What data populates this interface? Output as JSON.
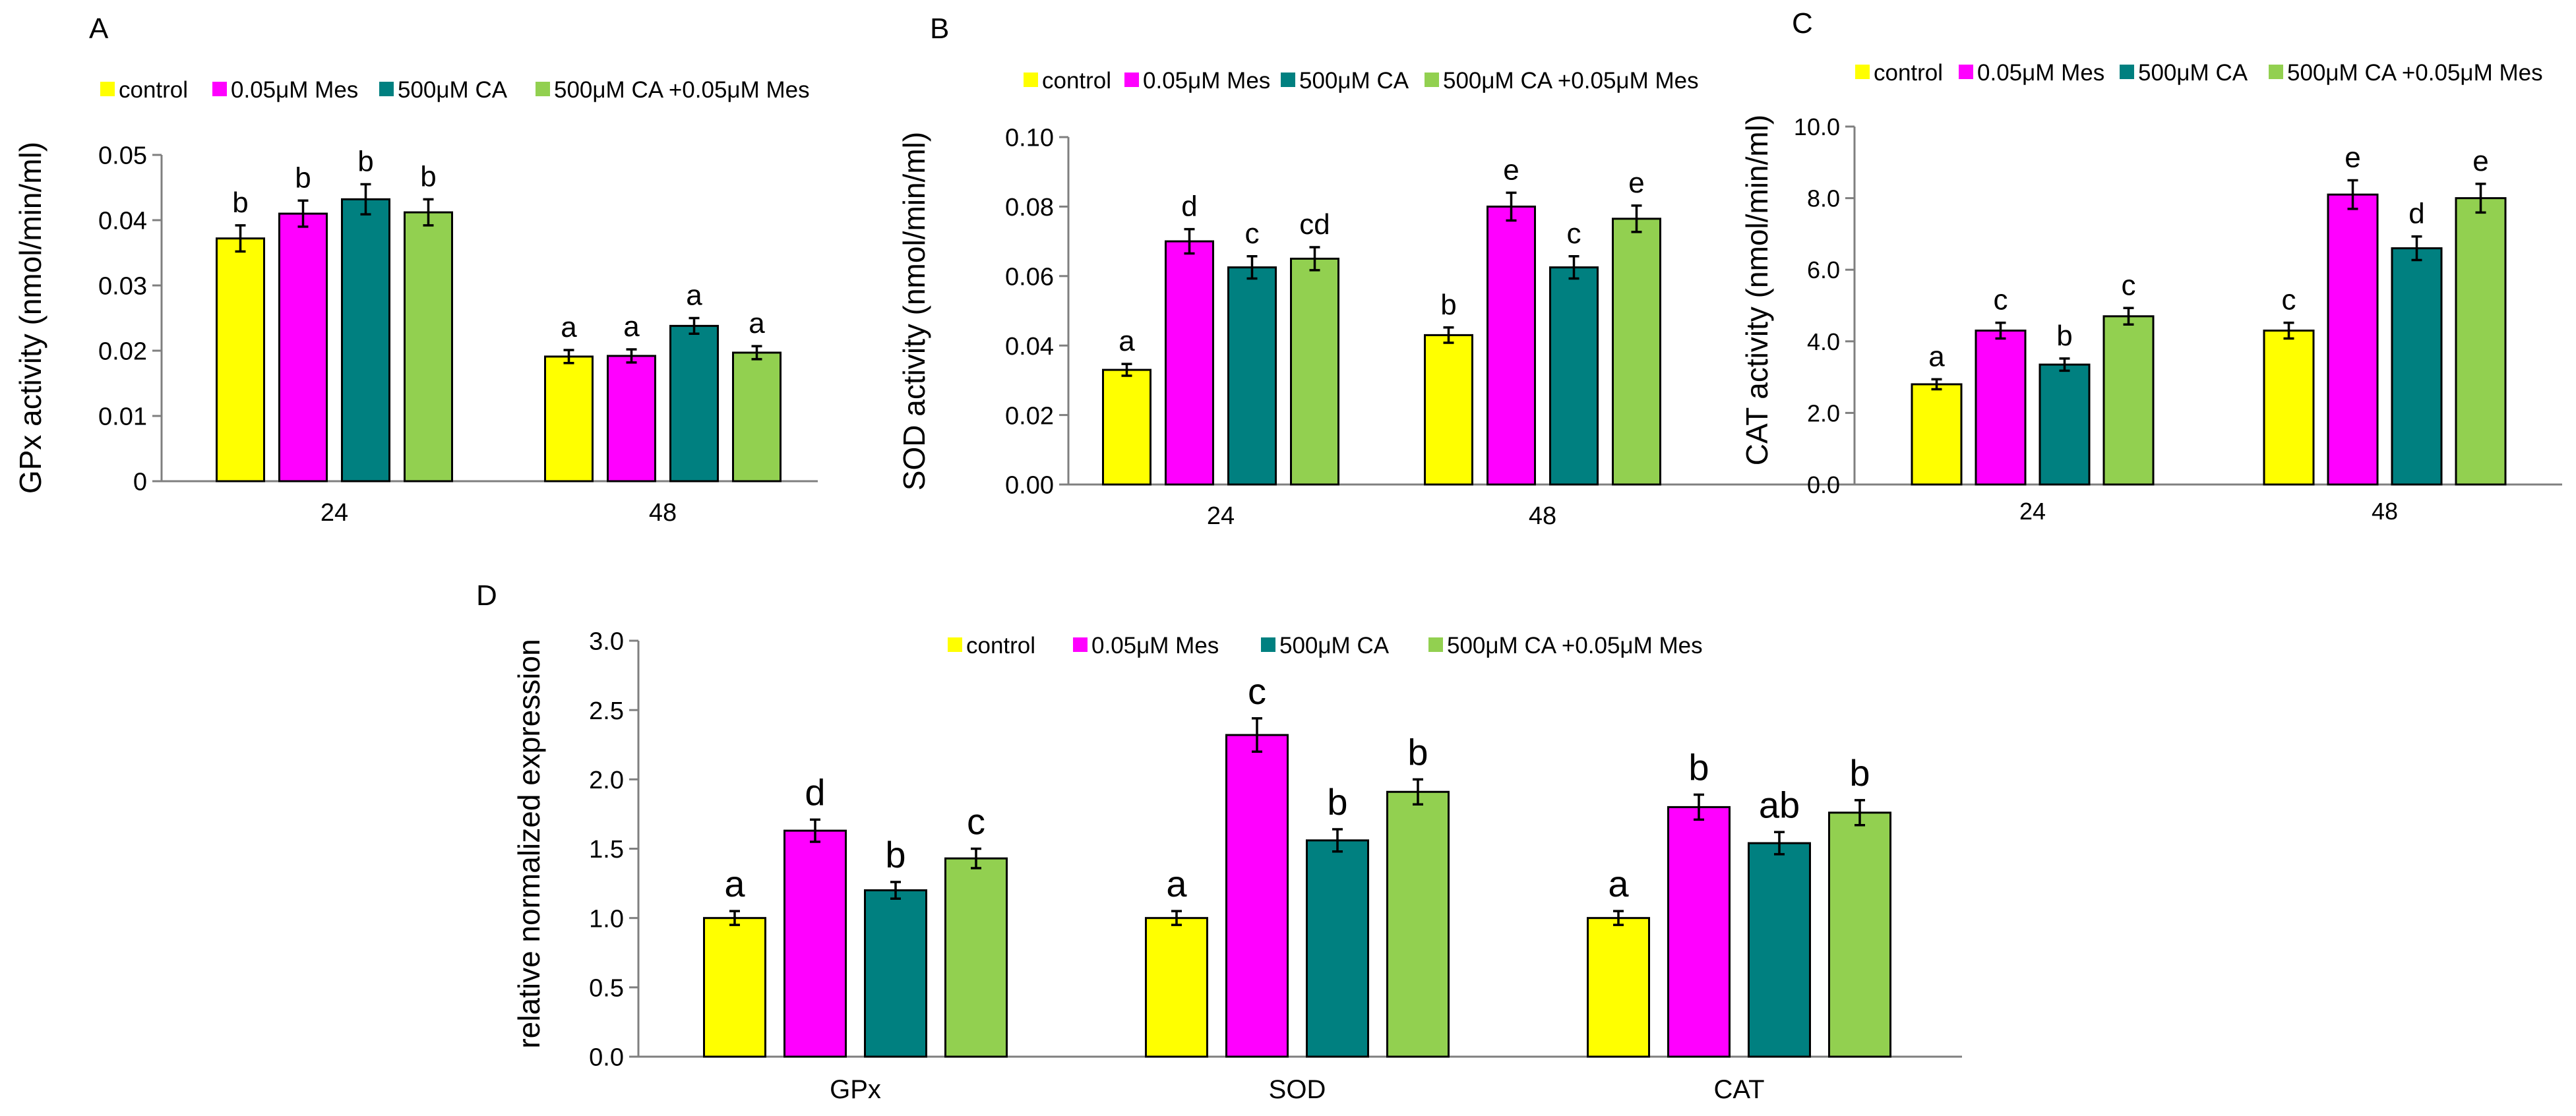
{
  "colors": {
    "control": "#ffff00",
    "mes": "#ff00ff",
    "ca": "#008080",
    "ca_mes": "#92d050"
  },
  "legend": [
    "control",
    "0.05μM Mes",
    "500μM CA",
    "500μM CA +0.05μM Mes"
  ],
  "chart_data": [
    {
      "panel": "A",
      "type": "bar",
      "ylabel": "GPx activity  (nmol/min/ml)",
      "categories": [
        "24",
        "48"
      ],
      "ylim": [
        0,
        0.05
      ],
      "yticks": [
        "0",
        "0.01",
        "0.02",
        "0.03",
        "0.04",
        "0.05"
      ],
      "series": [
        {
          "name": "control",
          "values": [
            0.0372,
            0.0191
          ],
          "errors": [
            0.002,
            0.001
          ],
          "letters": [
            "b",
            "a"
          ]
        },
        {
          "name": "0.05μM Mes",
          "values": [
            0.041,
            0.0192
          ],
          "errors": [
            0.002,
            0.001
          ],
          "letters": [
            "b",
            "a"
          ]
        },
        {
          "name": "500μM CA",
          "values": [
            0.0432,
            0.0238
          ],
          "errors": [
            0.0023,
            0.0012
          ],
          "letters": [
            "b",
            "a"
          ]
        },
        {
          "name": "500μM CA +0.05μM Mes",
          "values": [
            0.0412,
            0.0197
          ],
          "errors": [
            0.002,
            0.001
          ],
          "letters": [
            "b",
            "a"
          ]
        }
      ]
    },
    {
      "panel": "B",
      "type": "bar",
      "ylabel": "SOD activity  (nmol/min/ml)",
      "categories": [
        "24",
        "48"
      ],
      "ylim": [
        0,
        0.1
      ],
      "yticks": [
        "0.00",
        "0.02",
        "0.04",
        "0.06",
        "0.08",
        "0.10"
      ],
      "series": [
        {
          "name": "control",
          "values": [
            0.033,
            0.043
          ],
          "errors": [
            0.0017,
            0.0022
          ],
          "letters": [
            "a",
            "b"
          ]
        },
        {
          "name": "0.05μM Mes",
          "values": [
            0.07,
            0.08
          ],
          "errors": [
            0.0035,
            0.004
          ],
          "letters": [
            "d",
            "e"
          ]
        },
        {
          "name": "500μM CA",
          "values": [
            0.0625,
            0.0625
          ],
          "errors": [
            0.0032,
            0.0032
          ],
          "letters": [
            "c",
            "c"
          ]
        },
        {
          "name": "500μM CA +0.05μM Mes",
          "values": [
            0.065,
            0.0765
          ],
          "errors": [
            0.0033,
            0.0038
          ],
          "letters": [
            "cd",
            "e"
          ]
        }
      ]
    },
    {
      "panel": "C",
      "type": "bar",
      "ylabel": "CAT activity  (nmol/min/ml)",
      "categories": [
        "24",
        "48"
      ],
      "ylim": [
        0,
        10
      ],
      "yticks": [
        "0.0",
        "2.0",
        "4.0",
        "6.0",
        "8.0",
        "10.0"
      ],
      "series": [
        {
          "name": "control",
          "values": [
            2.8,
            4.3
          ],
          "errors": [
            0.14,
            0.22
          ],
          "letters": [
            "a",
            "c"
          ]
        },
        {
          "name": "0.05μM Mes",
          "values": [
            4.3,
            8.1
          ],
          "errors": [
            0.22,
            0.4
          ],
          "letters": [
            "c",
            "e"
          ]
        },
        {
          "name": "500μM CA",
          "values": [
            3.35,
            6.6
          ],
          "errors": [
            0.17,
            0.33
          ],
          "letters": [
            "b",
            "d"
          ]
        },
        {
          "name": "500μM CA +0.05μM Mes",
          "values": [
            4.7,
            8.0
          ],
          "errors": [
            0.23,
            0.4
          ],
          "letters": [
            "c",
            "e"
          ]
        }
      ]
    },
    {
      "panel": "D",
      "type": "bar",
      "ylabel": "relative normalized expression",
      "categories": [
        "GPx",
        "SOD",
        "CAT"
      ],
      "ylim": [
        0,
        3.0
      ],
      "yticks": [
        "0.0",
        "0.5",
        "1.0",
        "1.5",
        "2.0",
        "2.5",
        "3.0"
      ],
      "series": [
        {
          "name": "control",
          "values": [
            1.0,
            1.0,
            1.0
          ],
          "errors": [
            0.05,
            0.05,
            0.05
          ],
          "letters": [
            "a",
            "a",
            "a"
          ]
        },
        {
          "name": "0.05μM Mes",
          "values": [
            1.63,
            2.32,
            1.8
          ],
          "errors": [
            0.08,
            0.12,
            0.09
          ],
          "letters": [
            "d",
            "c",
            "b"
          ]
        },
        {
          "name": "500μM CA",
          "values": [
            1.2,
            1.56,
            1.54
          ],
          "errors": [
            0.06,
            0.08,
            0.08
          ],
          "letters": [
            "b",
            "b",
            "ab"
          ]
        },
        {
          "name": "500μM CA +0.05μM Mes",
          "values": [
            1.43,
            1.91,
            1.76
          ],
          "errors": [
            0.07,
            0.09,
            0.09
          ],
          "letters": [
            "c",
            "b",
            "b"
          ]
        }
      ]
    }
  ]
}
